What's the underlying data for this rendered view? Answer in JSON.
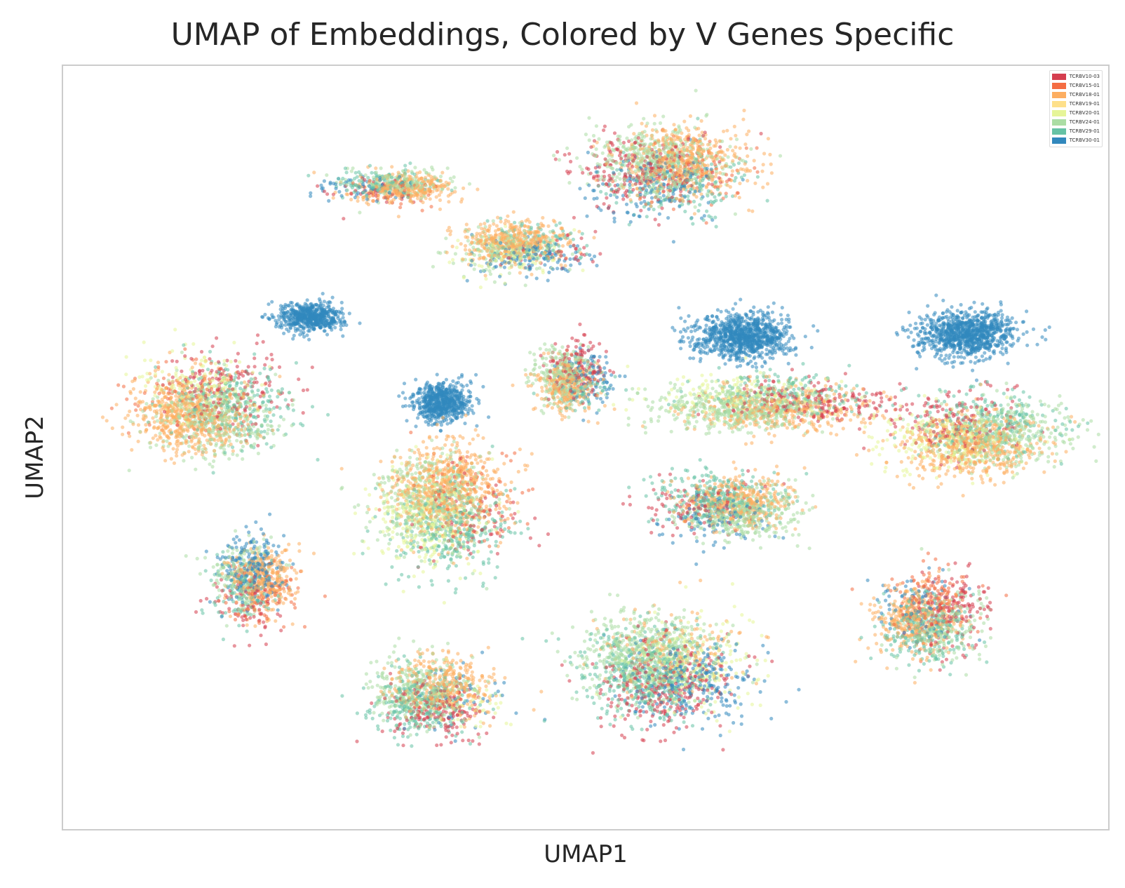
{
  "chart_data": {
    "type": "scatter",
    "title": "UMAP of Embeddings, Colored by V Genes Specific",
    "xlabel": "UMAP1",
    "ylabel": "UMAP2",
    "xlim": [
      0,
      100
    ],
    "ylim": [
      0,
      100
    ],
    "grid": false,
    "ticks": false,
    "legend_position": "top-right",
    "series": [
      {
        "name": "TCRBV10-03",
        "color": "#d53e4f"
      },
      {
        "name": "TCRBV15-01",
        "color": "#f46d43"
      },
      {
        "name": "TCRBV18-01",
        "color": "#fdae61"
      },
      {
        "name": "TCRBV19-01",
        "color": "#fee08b"
      },
      {
        "name": "TCRBV20-01",
        "color": "#e6f598"
      },
      {
        "name": "TCRBV24-01",
        "color": "#abdda4"
      },
      {
        "name": "TCRBV29-01",
        "color": "#66c2a5"
      },
      {
        "name": "TCRBV30-01",
        "color": "#3288bd"
      }
    ],
    "clusters": [
      {
        "center": [
          31,
          84
        ],
        "mix": {
          "TCRBV18-01": 0.45,
          "TCRBV24-01": 0.2,
          "TCRBV29-01": 0.15,
          "TCRBV30-01": 0.1,
          "TCRBV10-03": 0.05,
          "TCRBV15-01": 0.05
        }
      },
      {
        "center": [
          58,
          86
        ],
        "mix": {
          "TCRBV18-01": 0.3,
          "TCRBV24-01": 0.3,
          "TCRBV10-03": 0.15,
          "TCRBV30-01": 0.1,
          "TCRBV29-01": 0.1,
          "TCRBV15-01": 0.05
        }
      },
      {
        "center": [
          44,
          76
        ],
        "mix": {
          "TCRBV18-01": 0.4,
          "TCRBV24-01": 0.2,
          "TCRBV20-01": 0.1,
          "TCRBV30-01": 0.15,
          "TCRBV10-03": 0.05,
          "TCRBV29-01": 0.1
        }
      },
      {
        "center": [
          25,
          67
        ],
        "mix": {
          "TCRBV30-01": 1.0
        }
      },
      {
        "center": [
          14,
          56
        ],
        "mix": {
          "TCRBV18-01": 0.35,
          "TCRBV24-01": 0.25,
          "TCRBV29-01": 0.15,
          "TCRBV10-03": 0.1,
          "TCRBV20-01": 0.1,
          "TCRBV15-01": 0.05
        }
      },
      {
        "center": [
          36,
          57
        ],
        "mix": {
          "TCRBV30-01": 1.0
        }
      },
      {
        "center": [
          63,
          65
        ],
        "mix": {
          "TCRBV30-01": 1.0
        }
      },
      {
        "center": [
          85,
          64
        ],
        "mix": {
          "TCRBV30-01": 1.0
        }
      },
      {
        "center": [
          37,
          42
        ],
        "mix": {
          "TCRBV18-01": 0.35,
          "TCRBV24-01": 0.25,
          "TCRBV20-01": 0.15,
          "TCRBV29-01": 0.15,
          "TCRBV10-03": 0.05,
          "TCRBV15-01": 0.05
        }
      },
      {
        "center": [
          49,
          59
        ],
        "mix": {
          "TCRBV24-01": 0.35,
          "TCRBV18-01": 0.3,
          "TCRBV29-01": 0.1,
          "TCRBV30-01": 0.1,
          "TCRBV10-03": 0.15
        }
      },
      {
        "center": [
          68,
          56
        ],
        "mix": {
          "TCRBV24-01": 0.4,
          "TCRBV18-01": 0.25,
          "TCRBV10-03": 0.15,
          "TCRBV29-01": 0.1,
          "TCRBV20-01": 0.1
        }
      },
      {
        "center": [
          87,
          52
        ],
        "mix": {
          "TCRBV18-01": 0.35,
          "TCRBV24-01": 0.25,
          "TCRBV29-01": 0.15,
          "TCRBV10-03": 0.1,
          "TCRBV20-01": 0.15
        }
      },
      {
        "center": [
          63,
          42
        ],
        "mix": {
          "TCRBV24-01": 0.3,
          "TCRBV18-01": 0.3,
          "TCRBV29-01": 0.2,
          "TCRBV10-03": 0.1,
          "TCRBV30-01": 0.1
        }
      },
      {
        "center": [
          18,
          32
        ],
        "mix": {
          "TCRBV18-01": 0.3,
          "TCRBV30-01": 0.25,
          "TCRBV24-01": 0.15,
          "TCRBV29-01": 0.1,
          "TCRBV10-03": 0.1,
          "TCRBV15-01": 0.1
        }
      },
      {
        "center": [
          36,
          17
        ],
        "mix": {
          "TCRBV18-01": 0.3,
          "TCRBV24-01": 0.25,
          "TCRBV29-01": 0.2,
          "TCRBV10-03": 0.15,
          "TCRBV20-01": 0.05,
          "TCRBV30-01": 0.05
        }
      },
      {
        "center": [
          58,
          21
        ],
        "mix": {
          "TCRBV24-01": 0.3,
          "TCRBV29-01": 0.2,
          "TCRBV10-03": 0.15,
          "TCRBV30-01": 0.15,
          "TCRBV20-01": 0.1,
          "TCRBV18-01": 0.1
        }
      },
      {
        "center": [
          83,
          28
        ],
        "mix": {
          "TCRBV18-01": 0.3,
          "TCRBV29-01": 0.2,
          "TCRBV24-01": 0.15,
          "TCRBV10-03": 0.15,
          "TCRBV15-01": 0.1,
          "TCRBV30-01": 0.1
        }
      }
    ]
  }
}
